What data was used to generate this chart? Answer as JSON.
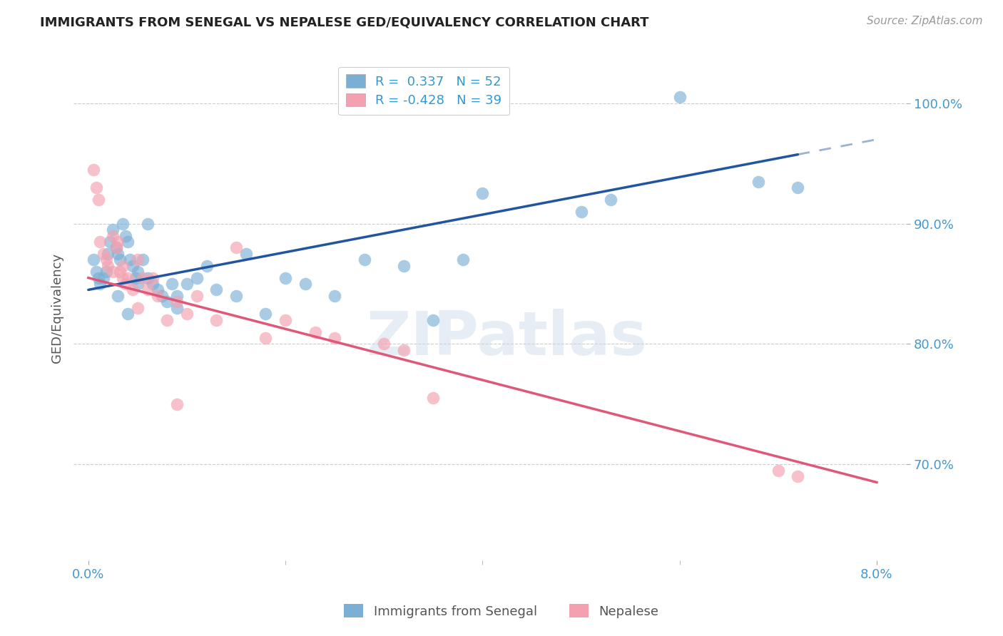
{
  "title": "IMMIGRANTS FROM SENEGAL VS NEPALESE GED/EQUIVALENCY CORRELATION CHART",
  "source": "Source: ZipAtlas.com",
  "ylabel": "GED/Equivalency",
  "watermark": "ZIPatlas",
  "xlim": [
    -0.15,
    8.3
  ],
  "ylim": [
    62.0,
    104.0
  ],
  "yticks": [
    70.0,
    80.0,
    90.0,
    100.0
  ],
  "ytick_labels": [
    "70.0%",
    "80.0%",
    "90.0%",
    "100.0%"
  ],
  "senegal_color": "#7bafd4",
  "nepalese_color": "#f4a0b0",
  "trendline_blue": "#2255a0",
  "trendline_pink": "#e05878",
  "background_color": "#ffffff",
  "grid_color": "#cccccc",
  "blue_line_x0": 0.0,
  "blue_line_y0": 84.5,
  "blue_line_x1": 8.0,
  "blue_line_y1": 97.0,
  "blue_solid_end": 7.2,
  "pink_line_x0": 0.0,
  "pink_line_y0": 85.5,
  "pink_line_x1": 8.0,
  "pink_line_y1": 68.5,
  "senegal_x": [
    0.05,
    0.08,
    0.1,
    0.12,
    0.15,
    0.18,
    0.2,
    0.22,
    0.25,
    0.28,
    0.3,
    0.32,
    0.35,
    0.38,
    0.4,
    0.42,
    0.45,
    0.48,
    0.5,
    0.55,
    0.6,
    0.65,
    0.7,
    0.75,
    0.8,
    0.85,
    0.9,
    1.0,
    1.1,
    1.2,
    1.3,
    1.5,
    1.6,
    1.8,
    2.0,
    2.2,
    2.5,
    2.8,
    3.2,
    3.5,
    4.0,
    5.0,
    5.3,
    6.0,
    6.8,
    7.2,
    3.8,
    0.3,
    0.4,
    0.5,
    0.6,
    0.9
  ],
  "senegal_y": [
    87.0,
    86.0,
    85.5,
    85.0,
    85.5,
    86.0,
    87.5,
    88.5,
    89.5,
    88.0,
    87.5,
    87.0,
    90.0,
    89.0,
    88.5,
    87.0,
    86.5,
    85.5,
    85.0,
    87.0,
    85.5,
    85.0,
    84.5,
    84.0,
    83.5,
    85.0,
    84.0,
    85.0,
    85.5,
    86.5,
    84.5,
    84.0,
    87.5,
    82.5,
    85.5,
    85.0,
    84.0,
    87.0,
    86.5,
    82.0,
    92.5,
    91.0,
    92.0,
    100.5,
    93.5,
    93.0,
    87.0,
    84.0,
    82.5,
    86.0,
    90.0,
    83.0
  ],
  "nepalese_x": [
    0.05,
    0.08,
    0.1,
    0.12,
    0.15,
    0.18,
    0.2,
    0.25,
    0.28,
    0.3,
    0.32,
    0.35,
    0.38,
    0.4,
    0.45,
    0.5,
    0.55,
    0.6,
    0.65,
    0.7,
    0.8,
    0.9,
    1.0,
    1.1,
    1.3,
    1.5,
    1.8,
    2.0,
    2.5,
    3.0,
    3.2,
    2.3,
    7.0,
    7.2,
    0.25,
    0.35,
    0.5,
    0.9,
    3.5
  ],
  "nepalese_y": [
    94.5,
    93.0,
    92.0,
    88.5,
    87.5,
    87.0,
    86.5,
    86.0,
    88.0,
    88.5,
    86.0,
    85.5,
    85.0,
    85.5,
    84.5,
    87.0,
    85.5,
    84.5,
    85.5,
    84.0,
    82.0,
    83.5,
    82.5,
    84.0,
    82.0,
    88.0,
    80.5,
    82.0,
    80.5,
    80.0,
    79.5,
    81.0,
    69.5,
    69.0,
    89.0,
    86.5,
    83.0,
    75.0,
    75.5
  ]
}
